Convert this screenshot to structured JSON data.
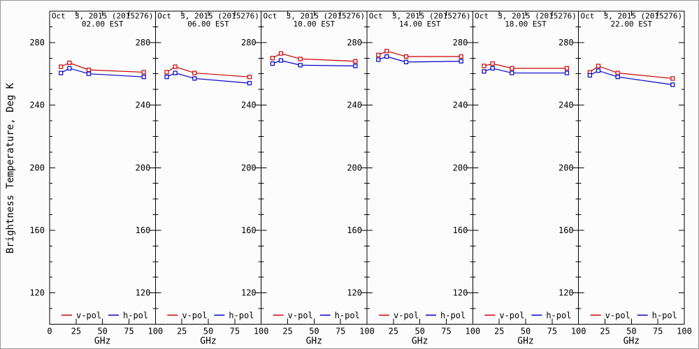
{
  "figure": {
    "ylabel": "Brightness Temperature, Deg K",
    "background": "#fcfcfc",
    "axis_color": "#000000"
  },
  "chart_data": {
    "type": "line",
    "x": [
      10.7,
      18.7,
      37.0,
      89.0
    ],
    "xlabel": "GHz",
    "ylabel": "Brightness Temperature, Deg K",
    "xlim": [
      0,
      100
    ],
    "ylim": [
      100,
      300
    ],
    "xticks": [
      0,
      25,
      50,
      75,
      100
    ],
    "yticks_major": [
      120,
      160,
      200,
      240,
      280
    ],
    "ytick_minor_step": 10,
    "grid": false,
    "legend_position": "bottom-inside-each-panel",
    "legend": [
      {
        "name": "v-pol",
        "color": "#cc0000"
      },
      {
        "name": "h-pol",
        "color": "#0000cc"
      }
    ],
    "marker": "open-square",
    "panels": [
      {
        "title_line1": "Oct  3, 2015 (2015276)",
        "title_line2": "02.00 EST",
        "series": [
          {
            "name": "v-pol",
            "color": "#cc0000",
            "values": [
              264.5,
              267.0,
              262.5,
              261.0
            ]
          },
          {
            "name": "h-pol",
            "color": "#0000cc",
            "values": [
              260.5,
              263.5,
              260.0,
              258.0
            ]
          }
        ]
      },
      {
        "title_line1": "Oct  3, 2015 (2015276)",
        "title_line2": "06.00 EST",
        "series": [
          {
            "name": "v-pol",
            "color": "#cc0000",
            "values": [
              261.0,
              264.5,
              260.5,
              258.0
            ]
          },
          {
            "name": "h-pol",
            "color": "#0000cc",
            "values": [
              258.0,
              260.5,
              257.0,
              254.0
            ]
          }
        ]
      },
      {
        "title_line1": "Oct  3, 2015 (2015276)",
        "title_line2": "10.00 EST",
        "series": [
          {
            "name": "v-pol",
            "color": "#cc0000",
            "values": [
              270.0,
              273.0,
              269.5,
              268.0
            ]
          },
          {
            "name": "h-pol",
            "color": "#0000cc",
            "values": [
              266.5,
              268.5,
              265.5,
              265.0
            ]
          }
        ]
      },
      {
        "title_line1": "Oct  3, 2015 (2015276)",
        "title_line2": "14.00 EST",
        "series": [
          {
            "name": "v-pol",
            "color": "#cc0000",
            "values": [
              272.0,
              274.5,
              271.0,
              271.0
            ]
          },
          {
            "name": "h-pol",
            "color": "#0000cc",
            "values": [
              269.0,
              271.0,
              267.5,
              268.0
            ]
          }
        ]
      },
      {
        "title_line1": "Oct  3, 2015 (2015276)",
        "title_line2": "18.00 EST",
        "series": [
          {
            "name": "v-pol",
            "color": "#cc0000",
            "values": [
              265.0,
              266.5,
              263.5,
              263.5
            ]
          },
          {
            "name": "h-pol",
            "color": "#0000cc",
            "values": [
              261.5,
              263.5,
              260.5,
              260.5
            ]
          }
        ]
      },
      {
        "title_line1": "Oct  3, 2015 (2015276)",
        "title_line2": "22.00 EST",
        "series": [
          {
            "name": "v-pol",
            "color": "#cc0000",
            "values": [
              261.0,
              265.0,
              260.5,
              257.0
            ]
          },
          {
            "name": "h-pol",
            "color": "#0000cc",
            "values": [
              259.0,
              262.0,
              258.0,
              253.0
            ]
          }
        ]
      }
    ]
  }
}
